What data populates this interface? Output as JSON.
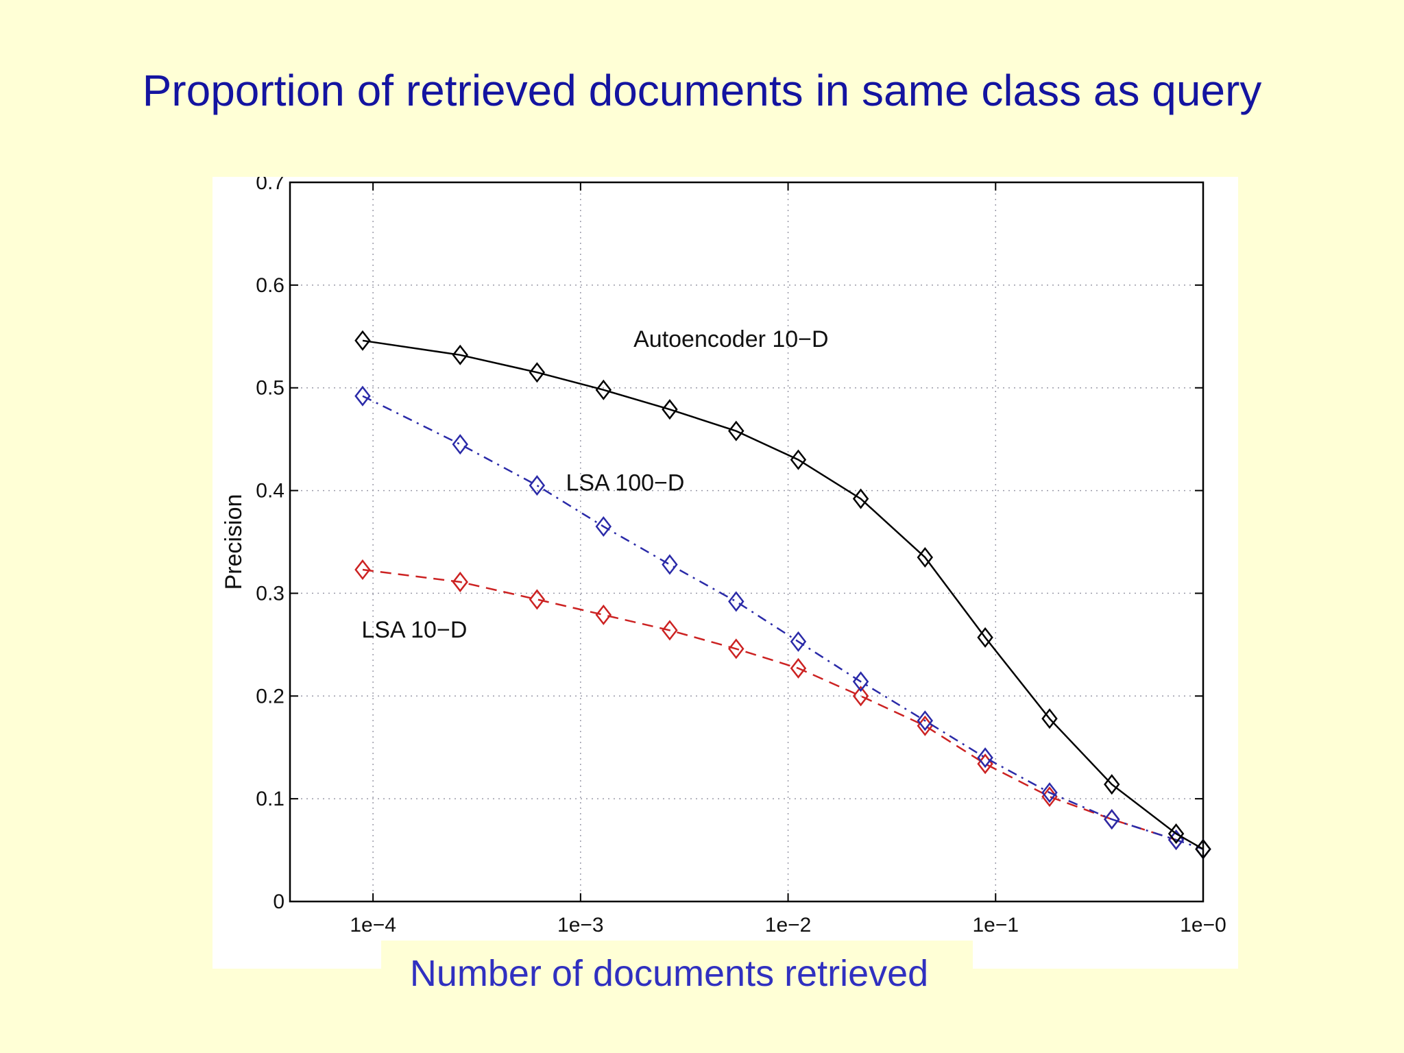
{
  "slide": {
    "title": "Proportion of retrieved documents in same class as query",
    "caption": "Number of documents retrieved"
  },
  "chart_data": {
    "type": "line",
    "title": "",
    "xlabel": "",
    "ylabel": "Precision",
    "x_scale": "log",
    "xlim": [
      3.98e-05,
      1
    ],
    "ylim": [
      0,
      0.7
    ],
    "x_ticks": [
      0.0001,
      0.001,
      0.01,
      0.1,
      1
    ],
    "x_tick_labels": [
      "1e−4",
      "1e−3",
      "1e−2",
      "1e−1",
      "1e−0"
    ],
    "y_ticks": [
      0,
      0.1,
      0.2,
      0.3,
      0.4,
      0.5,
      0.6,
      0.7
    ],
    "y_tick_labels": [
      "0",
      "0.1",
      "0.2",
      "0.3",
      "0.4",
      "0.5",
      "0.6",
      "0.7"
    ],
    "grid": true,
    "legend": "none",
    "series": [
      {
        "name": "Autoencoder 10−D",
        "color": "#000000",
        "line_style": "solid",
        "marker": "diamond",
        "x": [
          8.91e-05,
          0.000263,
          0.000617,
          0.00129,
          0.00269,
          0.00562,
          0.0112,
          0.0224,
          0.0457,
          0.0891,
          0.182,
          0.363,
          0.741,
          1
        ],
        "y": [
          0.546,
          0.532,
          0.515,
          0.498,
          0.479,
          0.458,
          0.43,
          0.392,
          0.335,
          0.257,
          0.178,
          0.114,
          0.066,
          0.051
        ]
      },
      {
        "name": "LSA 100−D",
        "color": "#2a2aa8",
        "line_style": "dashdot",
        "marker": "diamond",
        "x": [
          8.91e-05,
          0.000263,
          0.000617,
          0.00129,
          0.00269,
          0.00562,
          0.0112,
          0.0224,
          0.0457,
          0.0891,
          0.182,
          0.363,
          0.741,
          1
        ],
        "y": [
          0.492,
          0.445,
          0.405,
          0.365,
          0.328,
          0.292,
          0.253,
          0.214,
          0.176,
          0.14,
          0.106,
          0.08,
          0.06,
          0.051
        ]
      },
      {
        "name": "LSA 10−D",
        "color": "#cc2222",
        "line_style": "dashed",
        "marker": "diamond",
        "x": [
          8.91e-05,
          0.000263,
          0.000617,
          0.00129,
          0.00269,
          0.00562,
          0.0112,
          0.0224,
          0.0457,
          0.0891,
          0.182,
          0.363,
          0.741
        ],
        "y": [
          0.323,
          0.311,
          0.294,
          0.279,
          0.264,
          0.246,
          0.227,
          0.2,
          0.171,
          0.134,
          0.102,
          0.08,
          0.06
        ]
      }
    ],
    "annotations": [
      {
        "text": "Autoencoder 10−D",
        "x": 0.0018,
        "y": 0.54
      },
      {
        "text": "LSA 100−D",
        "x": 0.00085,
        "y": 0.4
      },
      {
        "text": "LSA 10−D",
        "x": 8.8e-05,
        "y": 0.257
      }
    ]
  }
}
